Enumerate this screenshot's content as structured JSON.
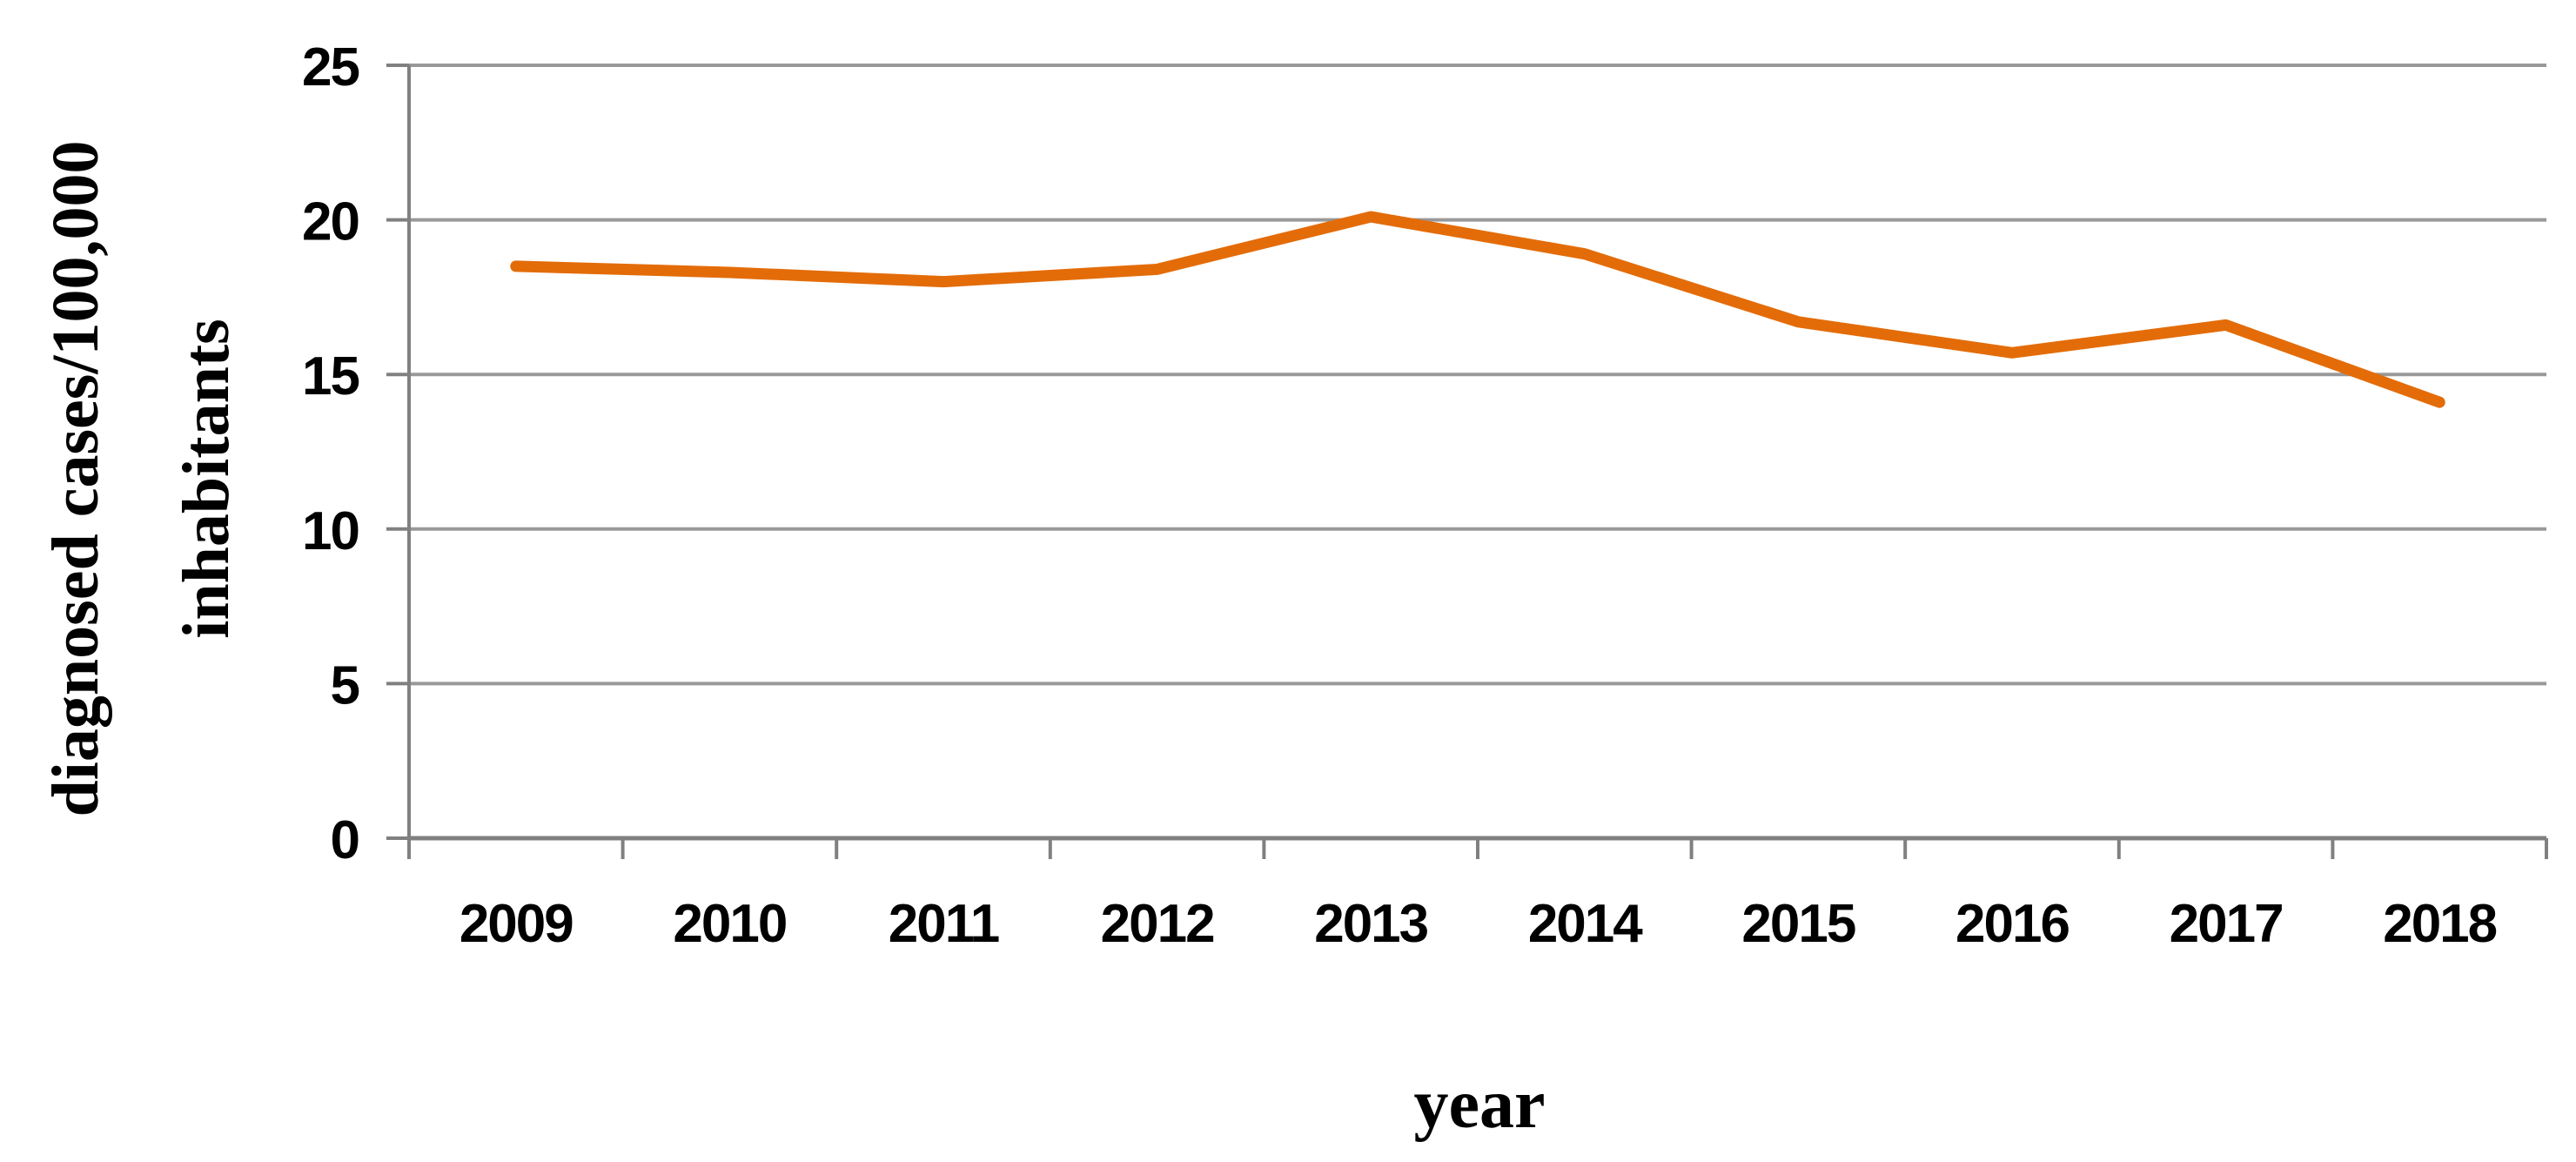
{
  "chart_data": {
    "type": "line",
    "title": "",
    "categories": [
      "2009",
      "2010",
      "2011",
      "2012",
      "2013",
      "2014",
      "2015",
      "2016",
      "2017",
      "2018"
    ],
    "values": [
      18.5,
      18.3,
      18.0,
      18.4,
      20.1,
      18.9,
      16.7,
      15.7,
      16.6,
      14.1
    ],
    "series_name": "diagnosed cases/100,000 inhabitants",
    "xlabel": "year",
    "ylabel": "diagnosed cases/100,000 inhabitants",
    "ylabel_lines": [
      "diagnosed cases/100,000",
      "inhabitants"
    ],
    "yticks": [
      0,
      5,
      10,
      15,
      20,
      25
    ],
    "ylim": [
      0,
      25
    ],
    "grid": "horizontal-only",
    "legend": "none",
    "colors": {
      "line": "#E36C09",
      "gridline": "#999999",
      "axis": "#808080",
      "text": "#000000",
      "background": "#FFFFFF"
    }
  }
}
